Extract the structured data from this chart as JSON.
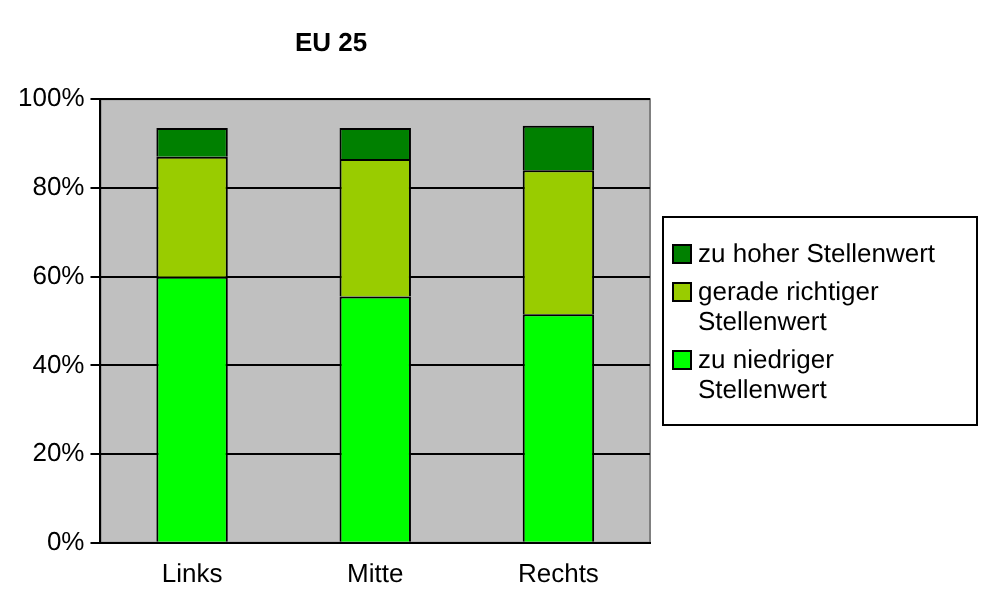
{
  "chart_data": {
    "type": "bar",
    "title": "EU 25",
    "categories": [
      "Links",
      "Mitte",
      "Rechts"
    ],
    "stacked": true,
    "series": [
      {
        "name": "zu niedriger Stellenwert",
        "color": "#00ff00",
        "values": [
          60,
          55.5,
          51.5
        ]
      },
      {
        "name": "gerade richtiger Stellenwert",
        "color": "#99cc00",
        "values": [
          27,
          31,
          32.5
        ]
      },
      {
        "name": "zu hoher Stellenwert",
        "color": "#008000",
        "values": [
          6.5,
          7,
          10
        ]
      }
    ],
    "ylim": [
      0,
      100
    ],
    "yticks": [
      {
        "value": 0,
        "label": "0%"
      },
      {
        "value": 20,
        "label": "20%"
      },
      {
        "value": 40,
        "label": "40%"
      },
      {
        "value": 60,
        "label": "60%"
      },
      {
        "value": 80,
        "label": "80%"
      },
      {
        "value": 100,
        "label": "100%"
      }
    ],
    "grid": "y",
    "legend": "right"
  }
}
